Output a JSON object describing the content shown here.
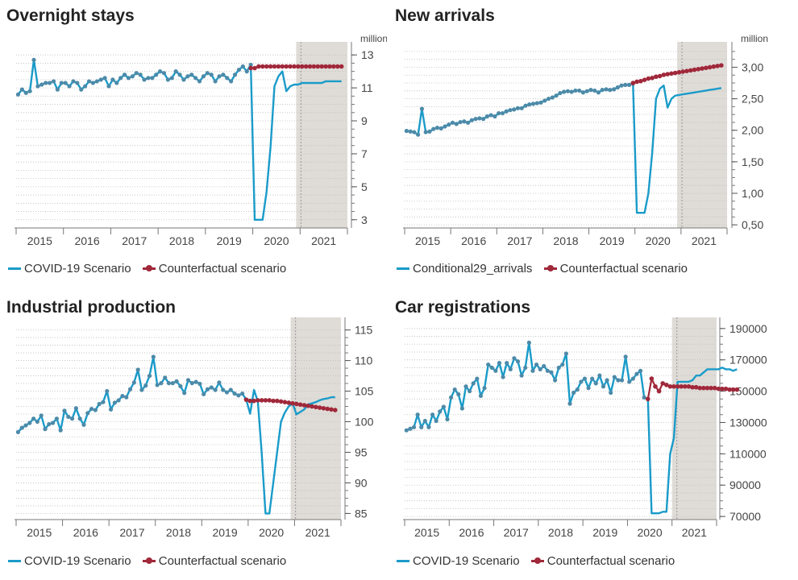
{
  "colors": {
    "covid": "#1a9bc9",
    "counter": "#a0283a",
    "dot": "#4d8aa8",
    "shade": "#dfdcd7",
    "grid": "#bdbdbd"
  },
  "chart_data": [
    {
      "id": "overnight",
      "type": "line",
      "title": "Overnight stays",
      "unit": "million",
      "yticks": [
        "3",
        "5",
        "7",
        "9",
        "11",
        "13"
      ],
      "ylim": [
        2.5,
        13.4
      ],
      "x_start": "2015-01",
      "xlabels": [
        "2015",
        "2016",
        "2017",
        "2018",
        "2019",
        "2020",
        "2021"
      ],
      "forecast_from": "2020-12",
      "legend": [
        "COVID-19 Scenario",
        "Counterfactual scenario"
      ],
      "series": [
        {
          "name": "COVID-19 Scenario",
          "values": [
            10.6,
            10.9,
            10.7,
            10.8,
            12.7,
            11.1,
            11.2,
            11.3,
            11.3,
            11.4,
            10.9,
            11.3,
            11.3,
            11.1,
            11.4,
            11.3,
            10.9,
            11.1,
            11.4,
            11.3,
            11.4,
            11.5,
            11.6,
            11.1,
            11.5,
            11.3,
            11.6,
            11.8,
            11.6,
            11.7,
            11.9,
            11.8,
            11.5,
            11.6,
            11.6,
            11.8,
            12.0,
            11.9,
            11.5,
            11.6,
            12.0,
            11.8,
            11.5,
            11.7,
            11.8,
            11.6,
            11.4,
            11.7,
            11.9,
            11.8,
            11.4,
            11.7,
            11.8,
            11.6,
            11.4,
            11.8,
            12.1,
            12.3,
            12.0,
            12.4,
            3.0,
            3.0,
            3.0,
            4.7,
            7.4,
            11.1,
            11.7,
            12.0,
            10.8,
            11.1,
            11.2,
            11.2,
            11.3,
            11.3,
            11.3,
            11.3,
            11.3,
            11.3,
            11.4,
            11.4,
            11.4,
            11.4,
            11.4
          ],
          "markers_until": 59
        },
        {
          "name": "Counterfactual scenario",
          "start": 59,
          "values": [
            12.2,
            12.2,
            12.3,
            12.3,
            12.3,
            12.3,
            12.3,
            12.3,
            12.3,
            12.3,
            12.3,
            12.3,
            12.3,
            12.3,
            12.3,
            12.3,
            12.3,
            12.3,
            12.3,
            12.3,
            12.3,
            12.3,
            12.3,
            12.3
          ]
        }
      ]
    },
    {
      "id": "arrivals",
      "type": "line",
      "title": "New arrivals",
      "unit": "million",
      "yticks": [
        "0,50",
        "1,00",
        "1,50",
        "2,00",
        "2,50",
        "3,00"
      ],
      "ylim": [
        0.45,
        3.3
      ],
      "x_start": "2015-01",
      "xlabels": [
        "2015",
        "2016",
        "2017",
        "2018",
        "2019",
        "2020",
        "2021"
      ],
      "forecast_from": "2020-12",
      "legend": [
        "Conditional29_arrivals",
        "Counterfactual scenario"
      ],
      "series": [
        {
          "name": "Conditional29_arrivals",
          "values": [
            1.99,
            1.98,
            1.97,
            1.93,
            2.34,
            1.97,
            1.98,
            2.02,
            2.04,
            2.03,
            2.06,
            2.09,
            2.12,
            2.1,
            2.13,
            2.14,
            2.12,
            2.16,
            2.18,
            2.19,
            2.18,
            2.22,
            2.24,
            2.22,
            2.27,
            2.27,
            2.3,
            2.32,
            2.33,
            2.35,
            2.35,
            2.39,
            2.41,
            2.42,
            2.43,
            2.44,
            2.47,
            2.5,
            2.52,
            2.55,
            2.59,
            2.61,
            2.62,
            2.61,
            2.63,
            2.63,
            2.6,
            2.62,
            2.64,
            2.63,
            2.6,
            2.64,
            2.65,
            2.64,
            2.65,
            2.68,
            2.71,
            2.72,
            2.72,
            2.74,
            0.69,
            0.69,
            0.69,
            1.0,
            1.64,
            2.5,
            2.66,
            2.71,
            2.36,
            2.5,
            2.55,
            2.56,
            2.57,
            2.58,
            2.59,
            2.6,
            2.61,
            2.62,
            2.63,
            2.64,
            2.65,
            2.66,
            2.67
          ],
          "markers_until": 59
        },
        {
          "name": "Counterfactual scenario",
          "start": 59,
          "values": [
            2.75,
            2.77,
            2.78,
            2.8,
            2.82,
            2.83,
            2.85,
            2.86,
            2.88,
            2.89,
            2.9,
            2.91,
            2.92,
            2.93,
            2.94,
            2.95,
            2.96,
            2.97,
            2.98,
            2.99,
            3.0,
            3.01,
            3.02,
            3.03
          ]
        }
      ]
    },
    {
      "id": "industrial",
      "type": "line",
      "title": "Industrial production",
      "unit": "",
      "yticks": [
        "85",
        "90",
        "95",
        "100",
        "105",
        "110",
        "115"
      ],
      "ylim": [
        84,
        116
      ],
      "x_start": "2015-01",
      "xlabels": [
        "2015",
        "2016",
        "2017",
        "2018",
        "2019",
        "2020",
        "2021"
      ],
      "forecast_from": "2020-12",
      "legend": [
        "COVID-19 Scenario",
        "Counterfactual scenario"
      ],
      "series": [
        {
          "name": "COVID-19 Scenario",
          "values": [
            98.3,
            99.0,
            99.4,
            99.8,
            100.5,
            100.0,
            101.0,
            98.8,
            99.6,
            99.8,
            100.5,
            98.6,
            101.8,
            100.8,
            100.5,
            102.2,
            100.5,
            99.5,
            101.4,
            102.1,
            101.9,
            102.9,
            103.2,
            105.0,
            102.0,
            103.1,
            103.5,
            104.2,
            104.0,
            105.3,
            106.4,
            108.5,
            105.2,
            105.9,
            107.5,
            110.6,
            106.0,
            106.3,
            107.2,
            106.3,
            106.3,
            106.6,
            105.8,
            104.7,
            106.8,
            106.3,
            106.5,
            106.2,
            104.5,
            105.3,
            105.6,
            105.2,
            106.4,
            105.2,
            104.8,
            105.2,
            104.6,
            104.3,
            104.6,
            103.6,
            101.3,
            105.2,
            103.3,
            95.0,
            85.0,
            85.0,
            90.0,
            95.0,
            100.0,
            101.5,
            102.5,
            103.0,
            101.2,
            101.6,
            102.0,
            102.8,
            103.0,
            103.2,
            103.5,
            103.7,
            103.8,
            104.0,
            104.0
          ],
          "markers_until": 59
        },
        {
          "name": "Counterfactual scenario",
          "start": 59,
          "values": [
            103.6,
            103.4,
            103.4,
            103.5,
            103.5,
            103.5,
            103.5,
            103.4,
            103.4,
            103.3,
            103.2,
            103.1,
            103.0,
            102.9,
            102.8,
            102.7,
            102.6,
            102.5,
            102.4,
            102.3,
            102.2,
            102.1,
            102.0,
            101.9
          ]
        }
      ]
    },
    {
      "id": "cars",
      "type": "line",
      "title": "Car registrations",
      "unit": "",
      "yticks": [
        "70000",
        "90000",
        "110000",
        "130000",
        "150000",
        "170000",
        "190000"
      ],
      "ylim": [
        68000,
        193000
      ],
      "x_start": "2015-01",
      "xlabels": [
        "2015",
        "2016",
        "2017",
        "2018",
        "2019",
        "2020",
        "2021"
      ],
      "forecast_from": "2021-01",
      "legend": [
        "COVID-19 Scenario",
        "Counterfactual scenario"
      ],
      "series": [
        {
          "name": "COVID-19 Scenario",
          "values": [
            125000,
            126000,
            127000,
            135000,
            127000,
            131000,
            127000,
            135000,
            131000,
            137000,
            140000,
            132000,
            146000,
            151000,
            148000,
            139000,
            153000,
            150000,
            155000,
            158000,
            147000,
            152000,
            167000,
            165000,
            163000,
            168000,
            159000,
            168000,
            164000,
            171000,
            169000,
            160000,
            165000,
            181000,
            163000,
            167000,
            164000,
            166000,
            163000,
            162000,
            157000,
            165000,
            167000,
            174000,
            142000,
            149000,
            151000,
            156000,
            158000,
            152000,
            158000,
            155000,
            160000,
            153000,
            157000,
            149000,
            159000,
            157000,
            157000,
            172000,
            156000,
            158000,
            161000,
            163000,
            146000,
            145000,
            72000,
            72000,
            72000,
            73000,
            73000,
            110000,
            120000,
            156000,
            156000,
            156000,
            156000,
            157000,
            160000,
            160000,
            162000,
            164000,
            164000,
            164000,
            164000,
            165000,
            164000,
            164000,
            163000,
            164000
          ],
          "markers_until": 65
        },
        {
          "name": "Counterfactual scenario",
          "start": 65,
          "values": [
            145000,
            158000,
            153000,
            150000,
            155000,
            154000,
            153000,
            153000,
            153000,
            153000,
            153000,
            153000,
            152500,
            152500,
            152000,
            152000,
            152000,
            152000,
            152000,
            151500,
            151500,
            151500,
            151000,
            151000,
            151000
          ]
        }
      ]
    }
  ]
}
